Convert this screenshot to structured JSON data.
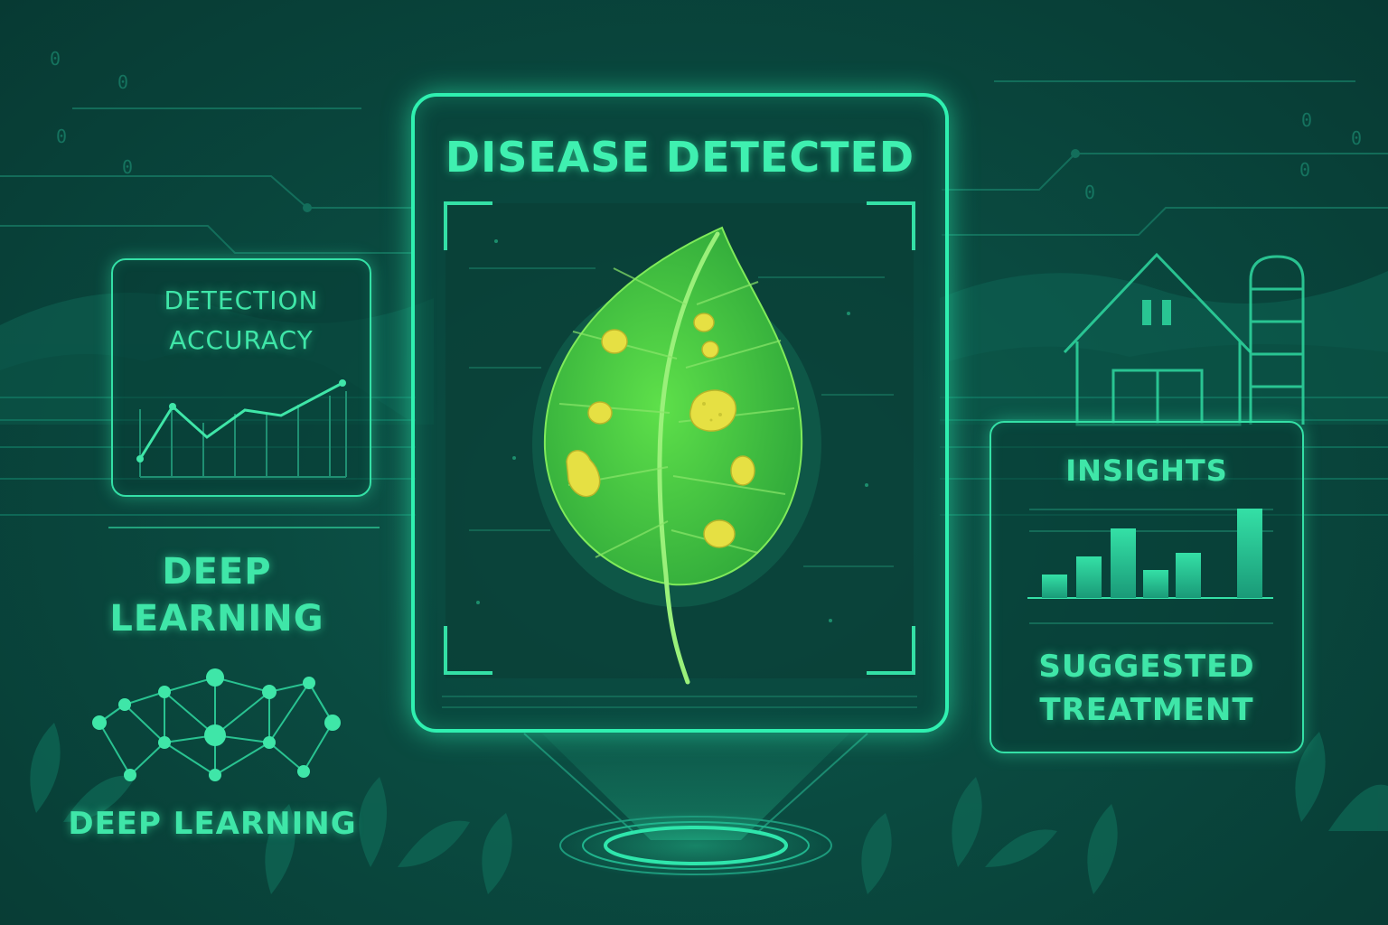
{
  "colors": {
    "accent": "#3fe6a8",
    "background": "#0a4a40",
    "leaf": "#4cc83a",
    "spots": "#e6e043"
  },
  "main_panel": {
    "title": "DISEASE DETECTED"
  },
  "accuracy_panel": {
    "title_line1": "DETECTION",
    "title_line2": "ACCURACY"
  },
  "left_labels": {
    "deep_learning_line1": "DEEP",
    "deep_learning_line2": "LEARNING",
    "network_caption": "DEEP LEARNING"
  },
  "insights_panel": {
    "title": "INSIGHTS",
    "treatment_line1": "SUGGESTED",
    "treatment_line2": "TREATMENT"
  },
  "icons": [
    "leaf-icon",
    "barn-icon",
    "silo-icon",
    "neural-network-icon",
    "line-chart-icon",
    "bar-chart-icon",
    "hologram-base-icon"
  ]
}
